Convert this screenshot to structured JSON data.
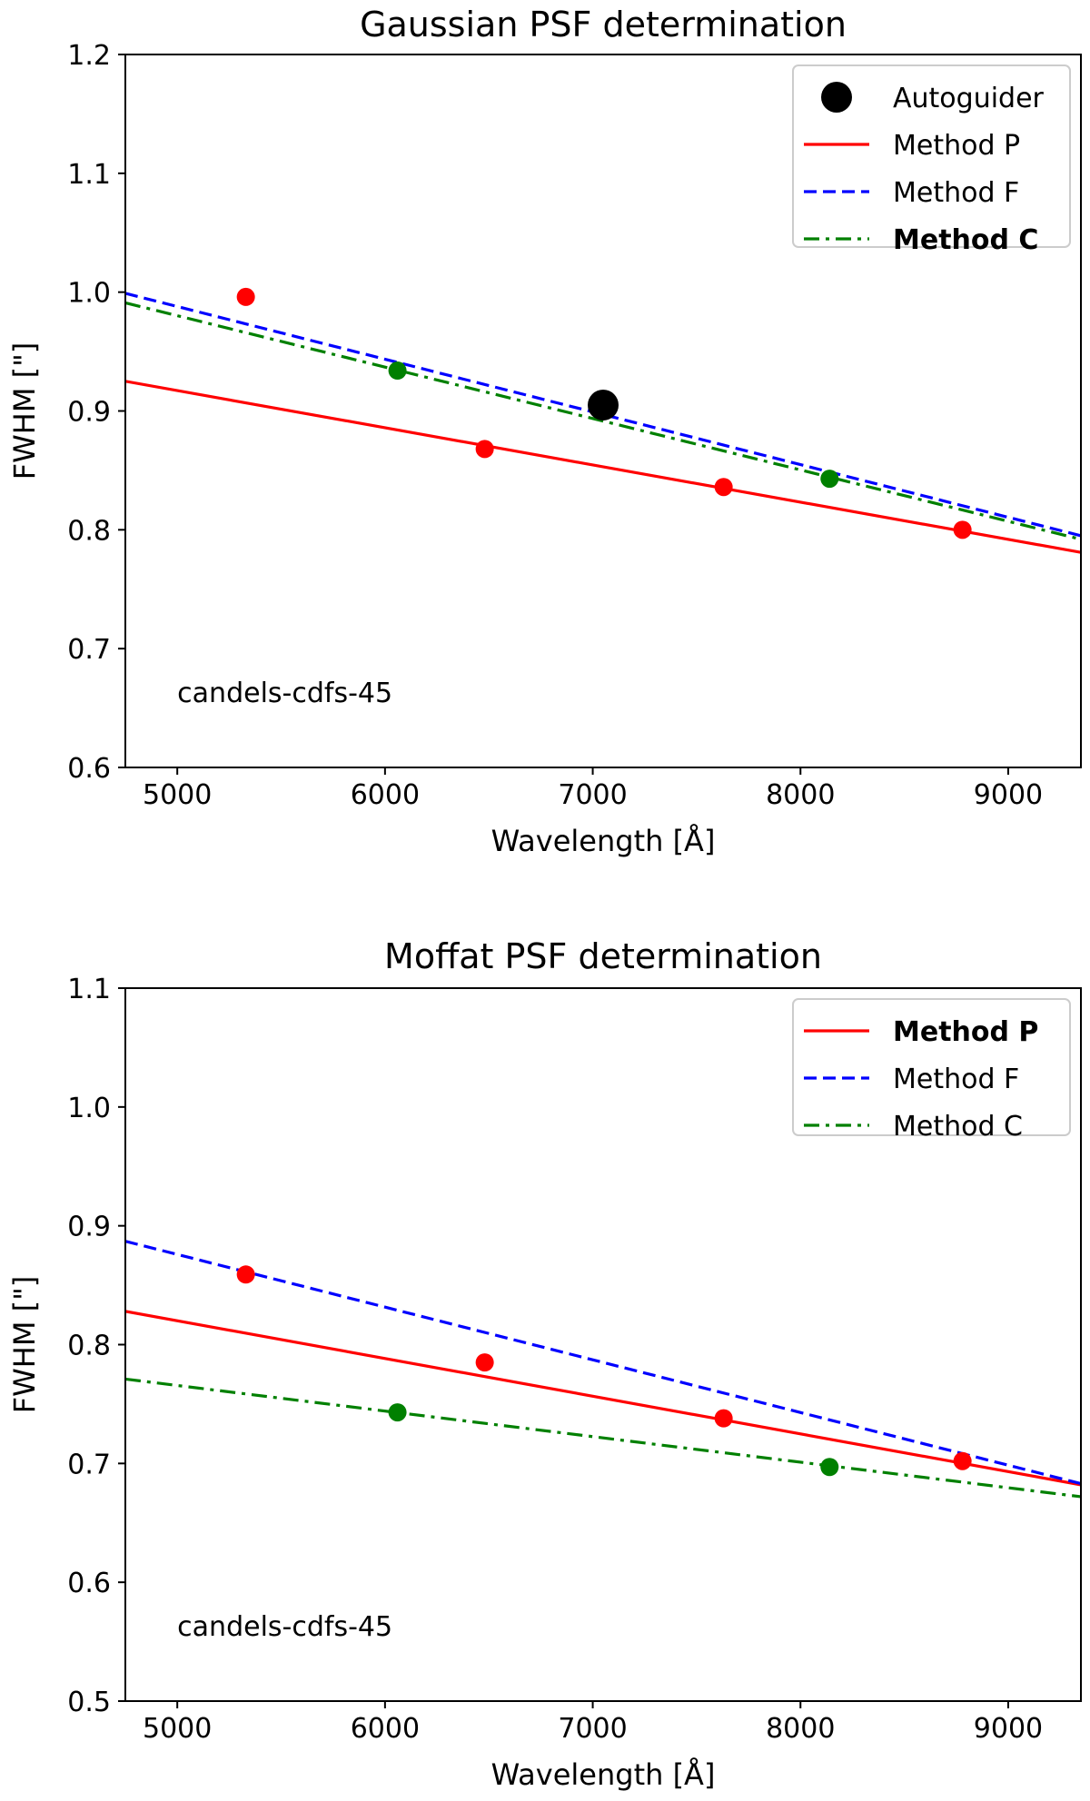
{
  "chart_data": [
    {
      "id": "gaussian",
      "type": "line",
      "title": "Gaussian PSF determination",
      "xlabel": "Wavelength [Å]",
      "ylabel": "FWHM [\"]",
      "xlim": [
        4750,
        9350
      ],
      "ylim": [
        0.6,
        1.2
      ],
      "xticks": [
        5000,
        6000,
        7000,
        8000,
        9000
      ],
      "xtick_labels": [
        "5000",
        "6000",
        "7000",
        "8000",
        "9000"
      ],
      "yticks": [
        0.6,
        0.7,
        0.8,
        0.9,
        1.0,
        1.1,
        1.2
      ],
      "ytick_labels": [
        "0.6",
        "0.7",
        "0.8",
        "0.9",
        "1.0",
        "1.1",
        "1.2"
      ],
      "grid": false,
      "annotation": "candels-cdfs-45",
      "legend_position": "top-right",
      "series": [
        {
          "name": "Autoguider",
          "kind": "scatter",
          "color": "#000000",
          "marker": "large-circle",
          "bold": false,
          "points": [
            [
              7050,
              0.905
            ]
          ]
        },
        {
          "name": "Method P",
          "kind": "line",
          "color": "#ff0000",
          "dash": "solid",
          "bold": false,
          "line": [
            [
              4750,
              0.925
            ],
            [
              9350,
              0.781
            ]
          ],
          "points": [
            [
              5330,
              0.996
            ],
            [
              6480,
              0.868
            ],
            [
              7630,
              0.836
            ],
            [
              8780,
              0.8
            ]
          ]
        },
        {
          "name": "Method F",
          "kind": "line",
          "color": "#0000ff",
          "dash": "dashed",
          "bold": false,
          "line": [
            [
              4750,
              0.999
            ],
            [
              9350,
              0.795
            ]
          ],
          "points": []
        },
        {
          "name": "Method C",
          "kind": "line",
          "color": "#008000",
          "dash": "dashdot",
          "bold": true,
          "line": [
            [
              4750,
              0.991
            ],
            [
              9350,
              0.792
            ]
          ],
          "points": [
            [
              6060,
              0.934
            ],
            [
              8140,
              0.843
            ]
          ]
        }
      ]
    },
    {
      "id": "moffat",
      "type": "line",
      "title": "Moffat PSF determination",
      "xlabel": "Wavelength [Å]",
      "ylabel": "FWHM [\"]",
      "xlim": [
        4750,
        9350
      ],
      "ylim": [
        0.5,
        1.1
      ],
      "xticks": [
        5000,
        6000,
        7000,
        8000,
        9000
      ],
      "xtick_labels": [
        "5000",
        "6000",
        "7000",
        "8000",
        "9000"
      ],
      "yticks": [
        0.5,
        0.6,
        0.7,
        0.8,
        0.9,
        1.0,
        1.1
      ],
      "ytick_labels": [
        "0.5",
        "0.6",
        "0.7",
        "0.8",
        "0.9",
        "1.0",
        "1.1"
      ],
      "grid": false,
      "annotation": "candels-cdfs-45",
      "legend_position": "top-right",
      "series": [
        {
          "name": "Method P",
          "kind": "line",
          "color": "#ff0000",
          "dash": "solid",
          "bold": true,
          "line": [
            [
              4750,
              0.828
            ],
            [
              9350,
              0.682
            ]
          ],
          "points": [
            [
              5330,
              0.859
            ],
            [
              6480,
              0.785
            ],
            [
              7630,
              0.738
            ],
            [
              8780,
              0.702
            ]
          ]
        },
        {
          "name": "Method F",
          "kind": "line",
          "color": "#0000ff",
          "dash": "dashed",
          "bold": false,
          "line": [
            [
              4750,
              0.887
            ],
            [
              9350,
              0.683
            ]
          ],
          "points": []
        },
        {
          "name": "Method C",
          "kind": "line",
          "color": "#008000",
          "dash": "dashdot",
          "bold": false,
          "line": [
            [
              4750,
              0.771
            ],
            [
              9350,
              0.672
            ]
          ],
          "points": [
            [
              6060,
              0.743
            ],
            [
              8140,
              0.697
            ]
          ]
        }
      ]
    }
  ]
}
